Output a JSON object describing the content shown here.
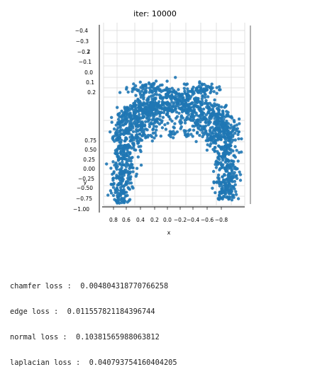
{
  "chart_data": {
    "type": "scatter",
    "title": "iter: 10000",
    "xlabel": "x",
    "ylabel": "y",
    "zlabel": "z",
    "projection": "3d",
    "elev": 0,
    "azim": -90,
    "marker_color": "#1f77b4",
    "xlim": [
      0.8,
      -0.8
    ],
    "ylim": [
      -1.0,
      1.0
    ],
    "zlim": [
      -0.4,
      0.2
    ],
    "x_ticks": [
      "0.8",
      "0.6",
      "0.4",
      "0.2",
      "0.0",
      "−0.2",
      "−0.4",
      "−0.6",
      "−0.8"
    ],
    "y_ticks": [
      "−1.00",
      "−0.75",
      "−0.50",
      "−0.25",
      "0.00",
      "0.25",
      "0.50",
      "0.75"
    ],
    "z_ticks": [
      "−0.4",
      "−0.3",
      "−0.2",
      "−0.1",
      "0.0",
      "0.1",
      "0.2"
    ],
    "grid": true,
    "legend": "none",
    "shape": "dense point cloud forming an arch / inverted-U (like a chair or pig body seen from the front): broad rounded top spanning roughly x from 0.55 to -0.55 at upper y, two legs descending on left and right sides"
  },
  "losses": {
    "chamfer": "chamfer loss :  0.004804318770766258",
    "edge": "edge loss :  0.011557821184396744",
    "normal": "normal loss :  0.10381565988063812",
    "laplacian": "laplacian loss :  0.040793754160404205"
  }
}
